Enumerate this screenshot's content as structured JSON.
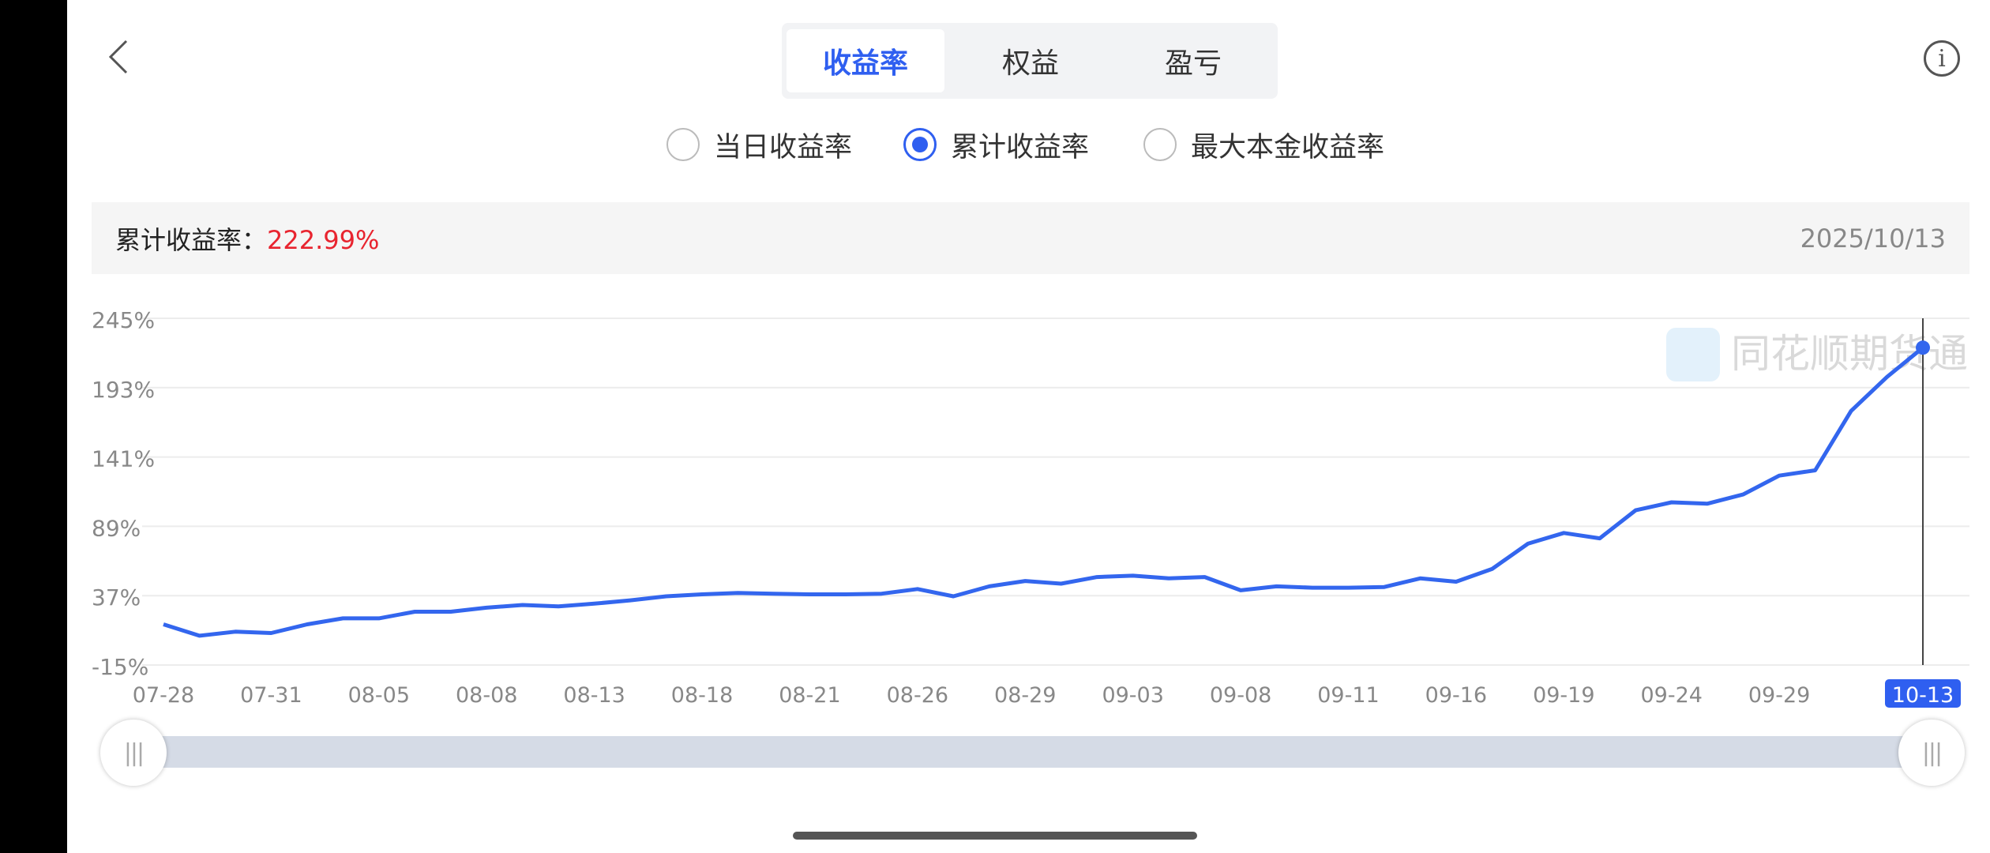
{
  "header": {
    "tabs": [
      {
        "label": "收益率",
        "active": true
      },
      {
        "label": "权益",
        "active": false
      },
      {
        "label": "盈亏",
        "active": false
      }
    ],
    "back_icon": "chevron-left-icon",
    "info_icon": "info-icon"
  },
  "radios": [
    {
      "label": "当日收益率",
      "checked": false
    },
    {
      "label": "累计收益率",
      "checked": true
    },
    {
      "label": "最大本金收益率",
      "checked": false
    }
  ],
  "summary": {
    "label": "累计收益率：",
    "value": "222.99%",
    "date": "2025/10/13",
    "value_color": "#e8242f"
  },
  "watermark": "同花顺期货通",
  "colors": {
    "accent": "#2f5ff0",
    "line": "#3366ee"
  },
  "chart_data": {
    "type": "line",
    "ylim": [
      -15,
      245
    ],
    "yticks": [
      "245%",
      "193%",
      "141%",
      "89%",
      "37%",
      "-15%"
    ],
    "ytick_values": [
      245,
      193,
      141,
      89,
      37,
      -15
    ],
    "xtick_labels": [
      "07-28",
      "07-31",
      "08-05",
      "08-08",
      "08-13",
      "08-18",
      "08-21",
      "08-26",
      "08-29",
      "09-03",
      "09-08",
      "09-11",
      "09-16",
      "09-19",
      "09-24",
      "09-29",
      "10-13"
    ],
    "xtick_indices": [
      0,
      3,
      6,
      9,
      12,
      15,
      18,
      21,
      24,
      27,
      30,
      33,
      36,
      39,
      42,
      45,
      49
    ],
    "selected_label": "10-13",
    "grid": true,
    "values": [
      15.5,
      7,
      10,
      9,
      15.5,
      20,
      20,
      25,
      25,
      28,
      30,
      29,
      31,
      33.5,
      36.5,
      38,
      39,
      38.5,
      38,
      38,
      38.5,
      42,
      36.5,
      44,
      48,
      46,
      51,
      52,
      50,
      51,
      41,
      44,
      43,
      43,
      43.5,
      50,
      47.5,
      57,
      76,
      84,
      80,
      101,
      107,
      106,
      113,
      127,
      131,
      175.5,
      201,
      222.99
    ]
  }
}
